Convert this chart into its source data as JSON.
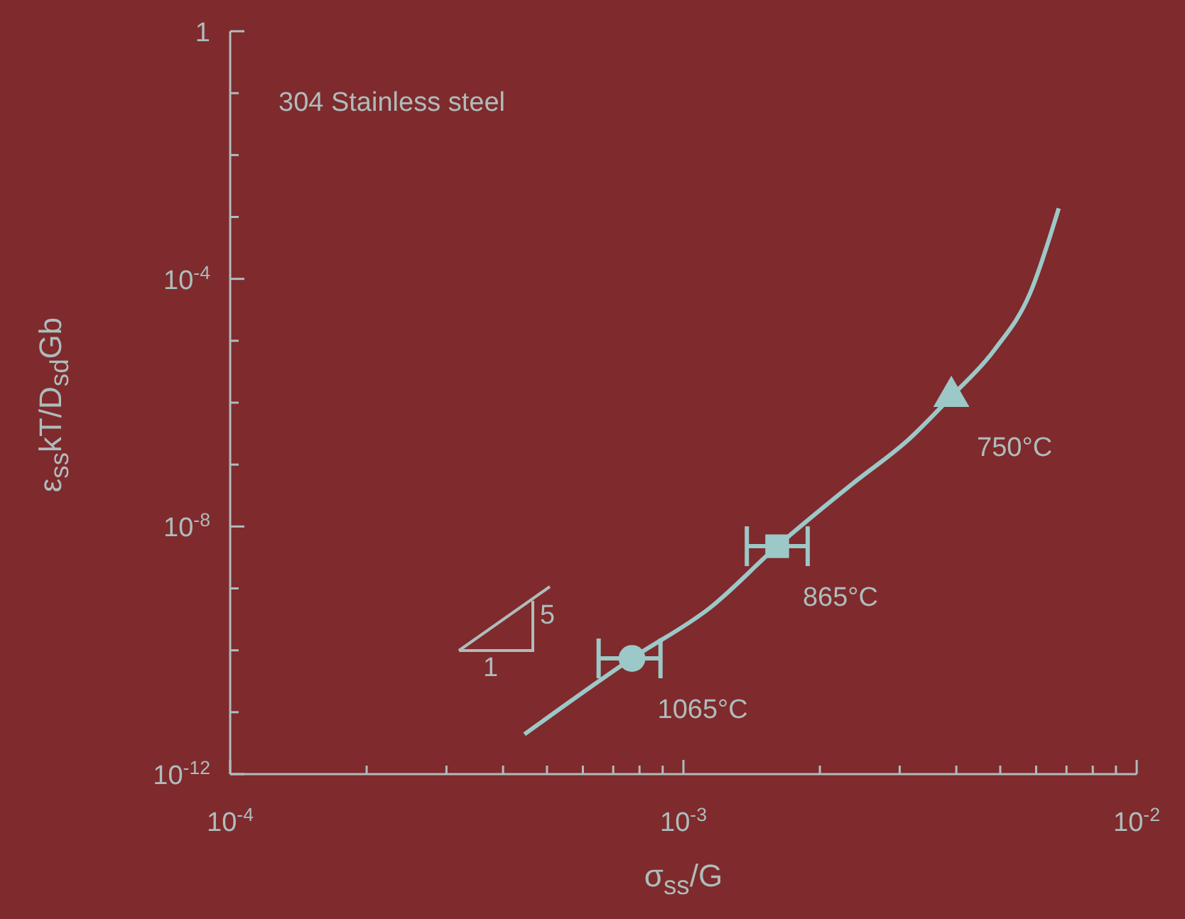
{
  "chart_data": {
    "type": "line",
    "xlabel": "σ$_{ss}$/G",
    "ylabel": "ε$_{ss}$kT/D$_{sd}$Gb",
    "log": "xy",
    "xlim": [
      0.0001,
      0.01
    ],
    "ylim": [
      1e-12,
      1
    ],
    "xticks": [
      {
        "value": 0.0001,
        "label": "10$^{-4}$"
      },
      {
        "value": 0.0002,
        "label": null
      },
      {
        "value": 0.0003,
        "label": null
      },
      {
        "value": 0.0004,
        "label": null
      },
      {
        "value": 0.0005,
        "label": null
      },
      {
        "value": 0.0006,
        "label": null
      },
      {
        "value": 0.0007,
        "label": null
      },
      {
        "value": 0.0008,
        "label": null
      },
      {
        "value": 0.0009,
        "label": null
      },
      {
        "value": 0.001,
        "label": "10$^{-3}$"
      },
      {
        "value": 0.002,
        "label": null
      },
      {
        "value": 0.003,
        "label": null
      },
      {
        "value": 0.004,
        "label": null
      },
      {
        "value": 0.005,
        "label": null
      },
      {
        "value": 0.006,
        "label": null
      },
      {
        "value": 0.007,
        "label": null
      },
      {
        "value": 0.008,
        "label": null
      },
      {
        "value": 0.009,
        "label": null
      },
      {
        "value": 0.01,
        "label": "10$^{-2}$"
      }
    ],
    "yticks": [
      {
        "value": 1e-12,
        "label": "10$^{-12}$"
      },
      {
        "value": 1e-11,
        "label": null
      },
      {
        "value": 1e-10,
        "label": null
      },
      {
        "value": 1e-09,
        "label": null
      },
      {
        "value": 1e-08,
        "label": "10$^{-8}$"
      },
      {
        "value": 1e-07,
        "label": null
      },
      {
        "value": 1e-06,
        "label": null
      },
      {
        "value": 1e-05,
        "label": null
      },
      {
        "value": 0.0001,
        "label": "10$^{-4}$"
      },
      {
        "value": 0.001,
        "label": null
      },
      {
        "value": 0.01,
        "label": null
      },
      {
        "value": 0.1,
        "label": null
      },
      1
    ],
    "series": [
      {
        "x": [
          0.000446,
          0.00077,
          0.00115,
          0.00161,
          0.00236,
          0.00315,
          0.0039,
          0.00486,
          0.00582,
          0.00673
        ],
        "values": [
          4.4e-12,
          7.4e-11,
          5e-10,
          4.8e-09,
          4.9e-08,
          2.6e-07,
          1.26e-06,
          7.2e-06,
          5.9e-05,
          0.00138
        ],
        "color": "#9cc8c8",
        "marker": "none"
      },
      {
        "type": "scatter",
        "x": [
          0.00077
        ],
        "values": [
          7.4e-11
        ],
        "xerrors": [
          [
            0.00065,
            0.00089
          ]
        ],
        "color": "#9cc8c8",
        "marker": "circle"
      },
      {
        "type": "scatter",
        "x": [
          0.00161
        ],
        "values": [
          4.8e-09
        ],
        "xerrors": [
          [
            0.00138,
            0.00188
          ]
        ],
        "color": "#9cc8c8",
        "marker": "square"
      },
      {
        "type": "scatter",
        "x": [
          0.0039
        ],
        "values": [
          1.26e-06
        ],
        "color": "#9cc8c8",
        "marker": "triangle"
      }
    ],
    "annotations": [
      "304 Stainless steel",
      {
        "text": "1065°C",
        "x": 0.00077,
        "y": 7.4e-11
      },
      {
        "text": "865°C",
        "x": 0.00161,
        "y": 4.8e-09
      },
      {
        "text": "750°C",
        "x": 0.0039,
        "y": 1.26e-06
      },
      "5",
      "1"
    ]
  }
}
